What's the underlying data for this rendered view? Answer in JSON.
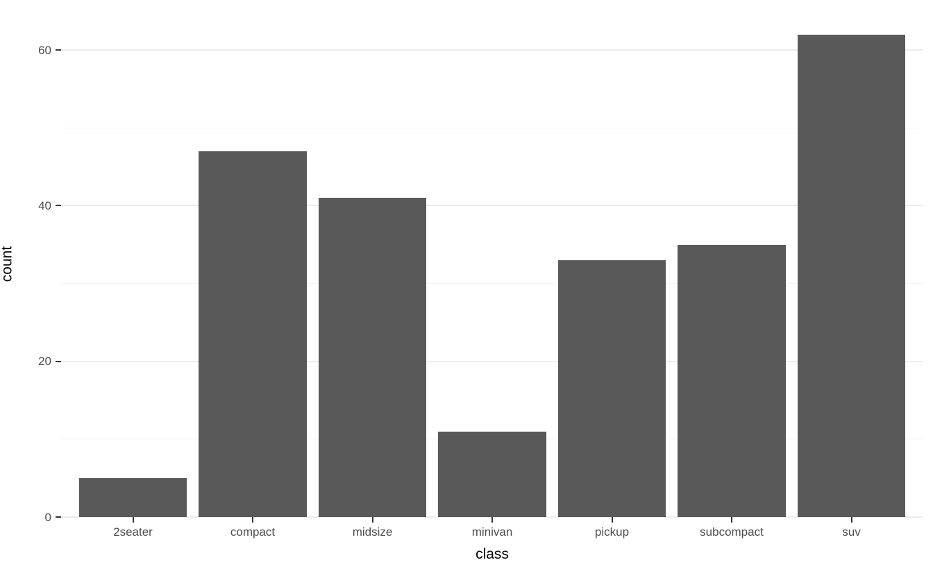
{
  "chart_data": {
    "type": "bar",
    "title": "",
    "categories": [
      "2seater",
      "compact",
      "midsize",
      "minivan",
      "pickup",
      "subcompact",
      "suv"
    ],
    "values": [
      5,
      47,
      41,
      11,
      33,
      35,
      62
    ],
    "xlabel": "class",
    "ylabel": "count",
    "ylim": [
      0,
      65.1
    ],
    "yticks_major": [
      0,
      20,
      40,
      60
    ],
    "yticks_minor": [
      10,
      30,
      50
    ],
    "grid": "horizontal-major-and-minor",
    "legend": "none",
    "colors": {
      "bar_fill": "#595959",
      "axis_text": "#4d4d4d",
      "axis_title": "#000000",
      "tick_mark": "#333333",
      "grid_major": "#ececec",
      "grid_minor": "#f4f4f4",
      "background": "#ffffff"
    }
  }
}
